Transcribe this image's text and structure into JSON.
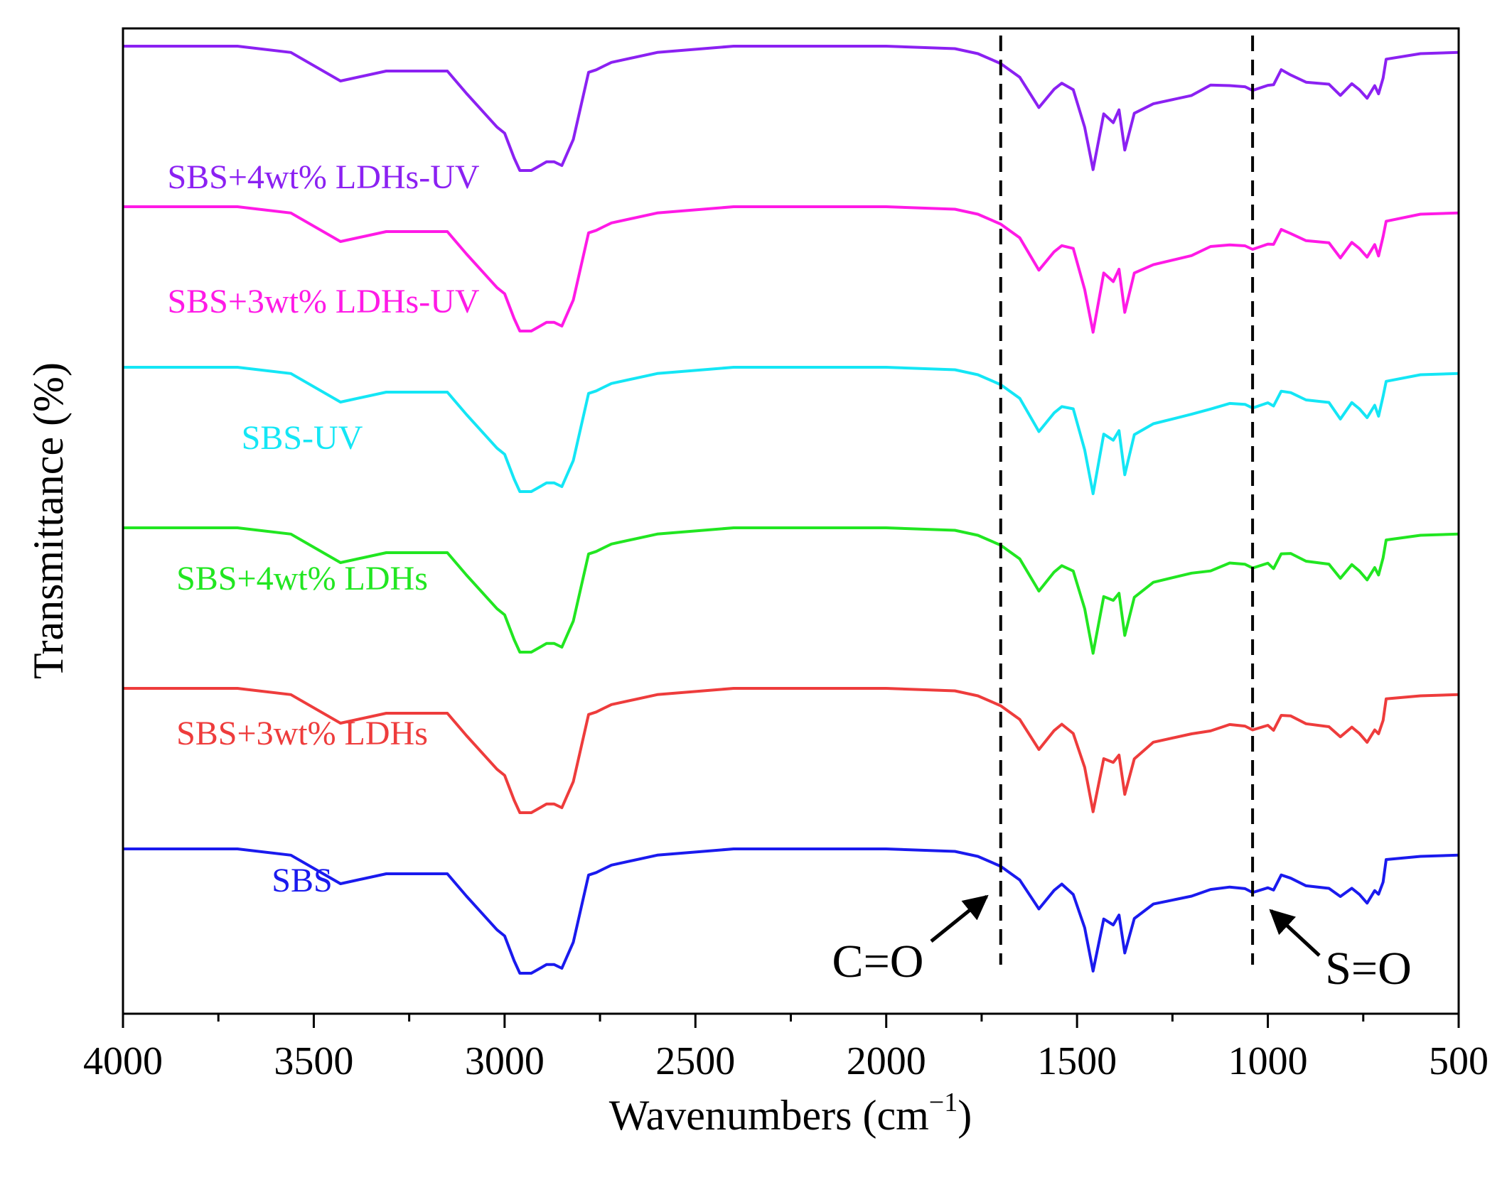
{
  "chart_data": {
    "type": "line",
    "xlabel": "Wavenumbers (cm⁻¹)",
    "ylabel": "Transmittance (%)",
    "xlim": [
      4000,
      500
    ],
    "x_reversed": true,
    "y_ticks_shown": false,
    "grid": false,
    "xticks": [
      4000,
      3500,
      3000,
      2500,
      2000,
      1500,
      1000,
      500
    ],
    "xtick_labels": [
      "4000",
      "3500",
      "3000",
      "2500",
      "2000",
      "1500",
      "1000",
      "500"
    ],
    "vlines": [
      {
        "x": 1700,
        "style": "dashed",
        "label": "C=O"
      },
      {
        "x": 1040,
        "style": "dashed",
        "label": "S=O"
      }
    ],
    "series": [
      {
        "name": "SBS+4wt% LDHs-UV",
        "color": "#8b21f2",
        "offset": 5
      },
      {
        "name": "SBS+3wt% LDHs-UV",
        "color": "#ff1ae6",
        "offset": 4
      },
      {
        "name": "SBS-UV",
        "color": "#14e6f5",
        "offset": 3
      },
      {
        "name": "SBS+4wt% LDHs",
        "color": "#21e621",
        "offset": 2
      },
      {
        "name": "SBS+3wt% LDHs",
        "color": "#ee3c3c",
        "offset": 1
      },
      {
        "name": "SBS",
        "color": "#1a1aee",
        "offset": 0
      }
    ],
    "base_profile": {
      "x": [
        4000,
        3700,
        3560,
        3430,
        3310,
        3150,
        3100,
        3020,
        3000,
        2975,
        2960,
        2930,
        2890,
        2880,
        2870,
        2850,
        2820,
        2780,
        2760,
        2740,
        2720,
        2600,
        2400,
        2000,
        1820,
        1760,
        1700,
        1650,
        1600,
        1560,
        1540,
        1510,
        1480,
        1458,
        1430,
        1405,
        1390,
        1375,
        1350,
        1300,
        1200,
        1150,
        1100,
        1060,
        1040,
        1000,
        985,
        965,
        940,
        900,
        840,
        810,
        780,
        760,
        740,
        720,
        710,
        698,
        690,
        600,
        500
      ],
      "y": [
        0,
        0,
        -0.05,
        -0.28,
        -0.2,
        -0.2,
        -0.38,
        -0.65,
        -0.7,
        -0.9,
        -1.0,
        -1.0,
        -0.93,
        -0.93,
        -0.93,
        -0.96,
        -0.75,
        -0.21,
        -0.19,
        -0.16,
        -0.13,
        -0.05,
        0,
        0,
        -0.02,
        -0.06,
        -0.14,
        -0.25,
        -0.5,
        -0.35,
        -0.3,
        -0.35,
        -0.65,
        -1.0,
        -0.55,
        -0.6,
        -0.52,
        -0.85,
        -0.55,
        -0.45,
        -0.38,
        -0.33,
        -0.3,
        -0.31,
        -0.34,
        -0.3,
        -0.32,
        -0.2,
        -0.22,
        -0.28,
        -0.3,
        -0.4,
        -0.3,
        -0.35,
        -0.42,
        -0.32,
        -0.38,
        -0.25,
        -0.1,
        -0.06,
        -0.05
      ]
    },
    "annotations": [
      {
        "text": "C=O",
        "points_to_x": 1700
      },
      {
        "text": "S=O",
        "points_to_x": 1040
      }
    ]
  }
}
